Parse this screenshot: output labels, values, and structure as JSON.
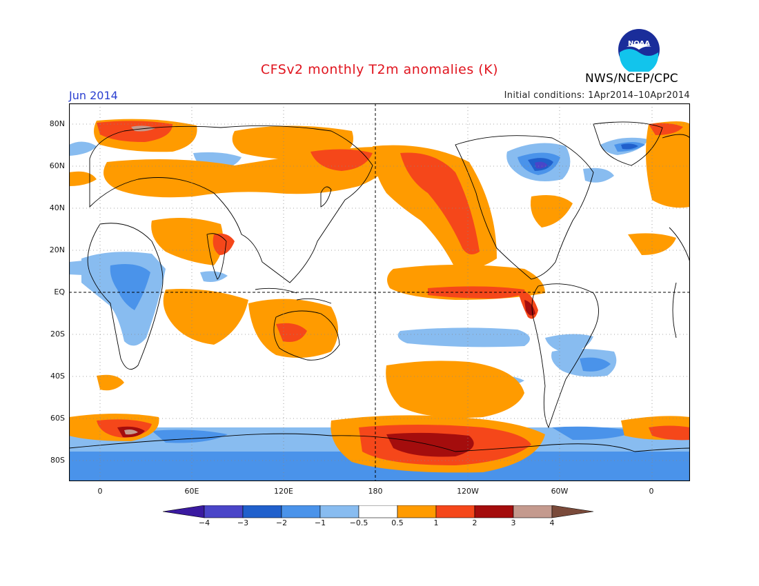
{
  "header": {
    "title": "CFSv2 monthly T2m anomalies (K)",
    "month": "Jun 2014",
    "initial_conditions": "Initial conditions: 1Apr2014–10Apr2014",
    "agency": "NWS/NCEP/CPC",
    "logo_text": "NOAA"
  },
  "map": {
    "variable": "T2m anomaly",
    "units": "K",
    "lat_labels": [
      "80N",
      "60N",
      "40N",
      "20N",
      "EQ",
      "20S",
      "40S",
      "60S",
      "80S"
    ],
    "lon_labels": [
      "0",
      "60E",
      "120E",
      "180",
      "120W",
      "60W",
      "0"
    ]
  },
  "legend": {
    "labels": [
      "−4",
      "−3",
      "−2",
      "−1",
      "−0.5",
      "0.5",
      "1",
      "2",
      "3",
      "4"
    ],
    "colors": {
      "lt_-4": "#3a1aa0",
      "m4_m3": "#4a45c8",
      "m3_m2": "#2060cc",
      "m2_m1": "#4a93ea",
      "m1_m05": "#88bcf0",
      "m05_05": "#ffffff",
      "p05_1": "#ff9b00",
      "p1_2": "#f5471a",
      "p2_3": "#a40d0d",
      "p3_4": "#c49a8e",
      "gt_4": "#7a4a3a"
    }
  }
}
